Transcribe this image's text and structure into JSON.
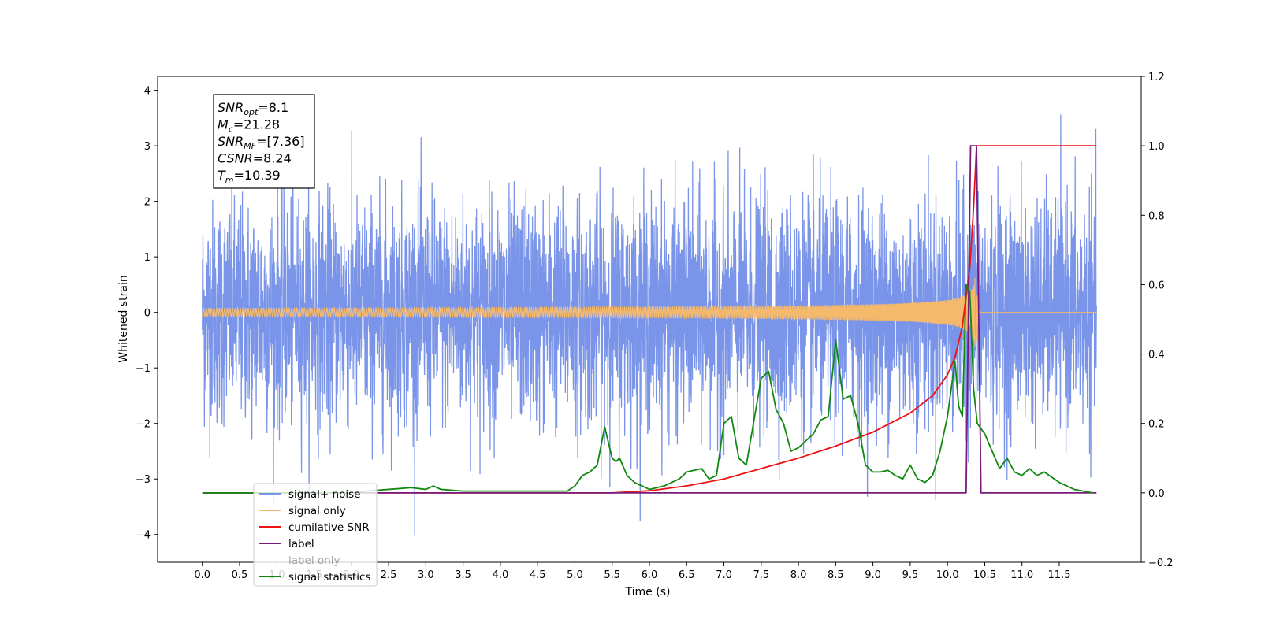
{
  "chart_data": {
    "type": "line",
    "xlabel": "Time (s)",
    "ylabel": "Whitened strain",
    "xlim": [
      -0.6,
      12.6
    ],
    "ylim": [
      -4.5,
      4.25
    ],
    "y2lim": [
      -0.2,
      1.2
    ],
    "x_ticks": [
      "0.0",
      "0.5",
      "1.0",
      "1.5",
      "2.0",
      "2.5",
      "3.0",
      "3.5",
      "4.0",
      "4.5",
      "5.0",
      "5.5",
      "6.0",
      "6.5",
      "7.0",
      "7.5",
      "8.0",
      "8.5",
      "9.0",
      "9.5",
      "10.0",
      "10.5",
      "11.0",
      "11.5"
    ],
    "y_ticks": [
      "4",
      "3",
      "2",
      "1",
      "0",
      "−1",
      "−2",
      "−3",
      "−4"
    ],
    "y2_ticks": [
      "1.2",
      "1.0",
      "0.8",
      "0.6",
      "0.4",
      "0.2",
      "0.0",
      "−0.2"
    ],
    "annotation": {
      "lines": [
        {
          "base": "SNR",
          "sub": "opt",
          "rest": "=8.1"
        },
        {
          "base": "M",
          "sub": "c",
          "rest": "=21.28"
        },
        {
          "base": "SNR",
          "sub": "MF",
          "rest": "=[7.36]"
        },
        {
          "base": "CSNR",
          "sub": "",
          "rest": "=8.24"
        },
        {
          "base": "T",
          "sub": "m",
          "rest": "=10.39"
        }
      ]
    },
    "series": [
      {
        "name": "signal+ noise",
        "color": "#7994e8",
        "axis": "left",
        "description_values": {
          "x_range": [
            0.0,
            12.0
          ],
          "std": 1.0,
          "range_approx": [
            -4.1,
            3.9
          ]
        }
      },
      {
        "name": "signal only",
        "color": "#f5b96b",
        "axis": "left",
        "chirp": {
          "merger_time": 10.39,
          "peak_amplitude": 0.65
        }
      },
      {
        "name": "cumilative SNR",
        "color": "#ee1111",
        "axis": "right",
        "x": [
          0.0,
          5.5,
          6.0,
          6.5,
          7.0,
          7.5,
          8.0,
          8.5,
          9.0,
          9.5,
          9.8,
          10.0,
          10.1,
          10.2,
          10.3,
          10.35,
          10.39,
          12.0
        ],
        "y": [
          0.0,
          0.0,
          0.006,
          0.02,
          0.04,
          0.07,
          0.1,
          0.135,
          0.175,
          0.23,
          0.28,
          0.34,
          0.39,
          0.48,
          0.65,
          0.82,
          1.0,
          1.0
        ]
      },
      {
        "name": "label",
        "color": "#7a1a7a",
        "axis": "right",
        "x": [
          0.0,
          10.25,
          10.31,
          10.39,
          10.45,
          12.0
        ],
        "y": [
          0.0,
          0.0,
          1.0,
          1.0,
          0.0,
          0.0
        ]
      },
      {
        "name": "label only",
        "color": "#ffffff",
        "axis": "right",
        "hidden": true
      },
      {
        "name": "signal statistics",
        "color": "#118811",
        "axis": "right",
        "x": [
          0.0,
          2.0,
          2.2,
          2.5,
          2.8,
          3.0,
          3.1,
          3.2,
          3.5,
          4.0,
          4.5,
          4.9,
          5.0,
          5.1,
          5.2,
          5.3,
          5.4,
          5.5,
          5.55,
          5.6,
          5.7,
          5.8,
          6.0,
          6.2,
          6.4,
          6.5,
          6.7,
          6.8,
          6.9,
          7.0,
          7.1,
          7.2,
          7.3,
          7.5,
          7.6,
          7.7,
          7.8,
          7.9,
          8.0,
          8.1,
          8.2,
          8.3,
          8.4,
          8.5,
          8.6,
          8.7,
          8.8,
          8.9,
          9.0,
          9.1,
          9.2,
          9.3,
          9.4,
          9.5,
          9.6,
          9.7,
          9.8,
          9.9,
          10.0,
          10.1,
          10.15,
          10.2,
          10.25,
          10.3,
          10.35,
          10.4,
          10.5,
          10.6,
          10.7,
          10.8,
          10.9,
          11.0,
          11.1,
          11.2,
          11.3,
          11.5,
          11.7,
          11.95
        ],
        "y": [
          0.0,
          0.0,
          0.005,
          0.01,
          0.015,
          0.01,
          0.02,
          0.01,
          0.005,
          0.005,
          0.005,
          0.005,
          0.02,
          0.05,
          0.06,
          0.08,
          0.19,
          0.1,
          0.09,
          0.1,
          0.05,
          0.03,
          0.01,
          0.02,
          0.04,
          0.06,
          0.07,
          0.04,
          0.05,
          0.2,
          0.22,
          0.1,
          0.08,
          0.33,
          0.35,
          0.24,
          0.2,
          0.12,
          0.13,
          0.15,
          0.17,
          0.21,
          0.22,
          0.44,
          0.27,
          0.28,
          0.2,
          0.08,
          0.06,
          0.06,
          0.065,
          0.05,
          0.04,
          0.08,
          0.04,
          0.03,
          0.05,
          0.12,
          0.22,
          0.38,
          0.25,
          0.22,
          0.6,
          0.58,
          0.3,
          0.2,
          0.17,
          0.12,
          0.07,
          0.1,
          0.06,
          0.05,
          0.07,
          0.05,
          0.06,
          0.03,
          0.01,
          0.0
        ]
      }
    ],
    "legend": {
      "placement": "lower-left",
      "entries": [
        "signal+ noise",
        "signal only",
        "cumilative SNR",
        "label",
        "label only",
        "signal statistics"
      ]
    },
    "grid": false
  }
}
